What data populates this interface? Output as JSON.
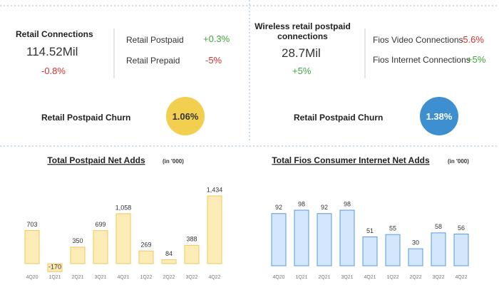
{
  "left_panel": {
    "title": "Retail Connections",
    "value": "114.52Mil",
    "change": "-0.8%",
    "items": [
      {
        "label": "Retail Postpaid",
        "change": "+0.3%"
      },
      {
        "label": "Retail Prepaid",
        "change": "-5%"
      }
    ],
    "churn_label": "Retail Postpaid Churn",
    "churn": "1.06%"
  },
  "right_panel": {
    "title": "Wireless retail postpaid connections",
    "value": "28.7Mil",
    "change": "+5%",
    "items": [
      {
        "label": "Fios Video Connections",
        "change": "-5.6%"
      },
      {
        "label": "Fios Internet Connections",
        "change": "+5%"
      }
    ],
    "churn_label": "Retail Postpaid Churn",
    "churn": "1.38%"
  },
  "chart_data": [
    {
      "type": "bar",
      "title": "Total Postpaid Net Adds",
      "subtitle": "(in '000)",
      "categories": [
        "4Q20",
        "1Q21",
        "2Q21",
        "3Q21",
        "4Q21",
        "1Q22",
        "2Q22",
        "3Q22",
        "4Q22"
      ],
      "values": [
        703,
        -170,
        350,
        699,
        1058,
        269,
        84,
        388,
        1434
      ],
      "value_labels": [
        "703",
        "-170",
        "350",
        "699",
        "1,058",
        "269",
        "84",
        "388",
        "1,434"
      ],
      "color": "#fdebb8",
      "border_color": "#f3c75a"
    },
    {
      "type": "bar",
      "title": "Total Fios Consumer Internet Net Adds",
      "subtitle": "(in '000)",
      "categories": [
        "4Q20",
        "1Q21",
        "2Q21",
        "3Q21",
        "4Q21",
        "1Q22",
        "2Q22",
        "3Q22",
        "4Q22"
      ],
      "values": [
        92,
        98,
        92,
        98,
        51,
        55,
        30,
        58,
        56
      ],
      "value_labels": [
        "92",
        "98",
        "92",
        "98",
        "51",
        "55",
        "30",
        "58",
        "56"
      ],
      "color": "#d3e6fa",
      "border_color": "#5a9ad8"
    }
  ]
}
